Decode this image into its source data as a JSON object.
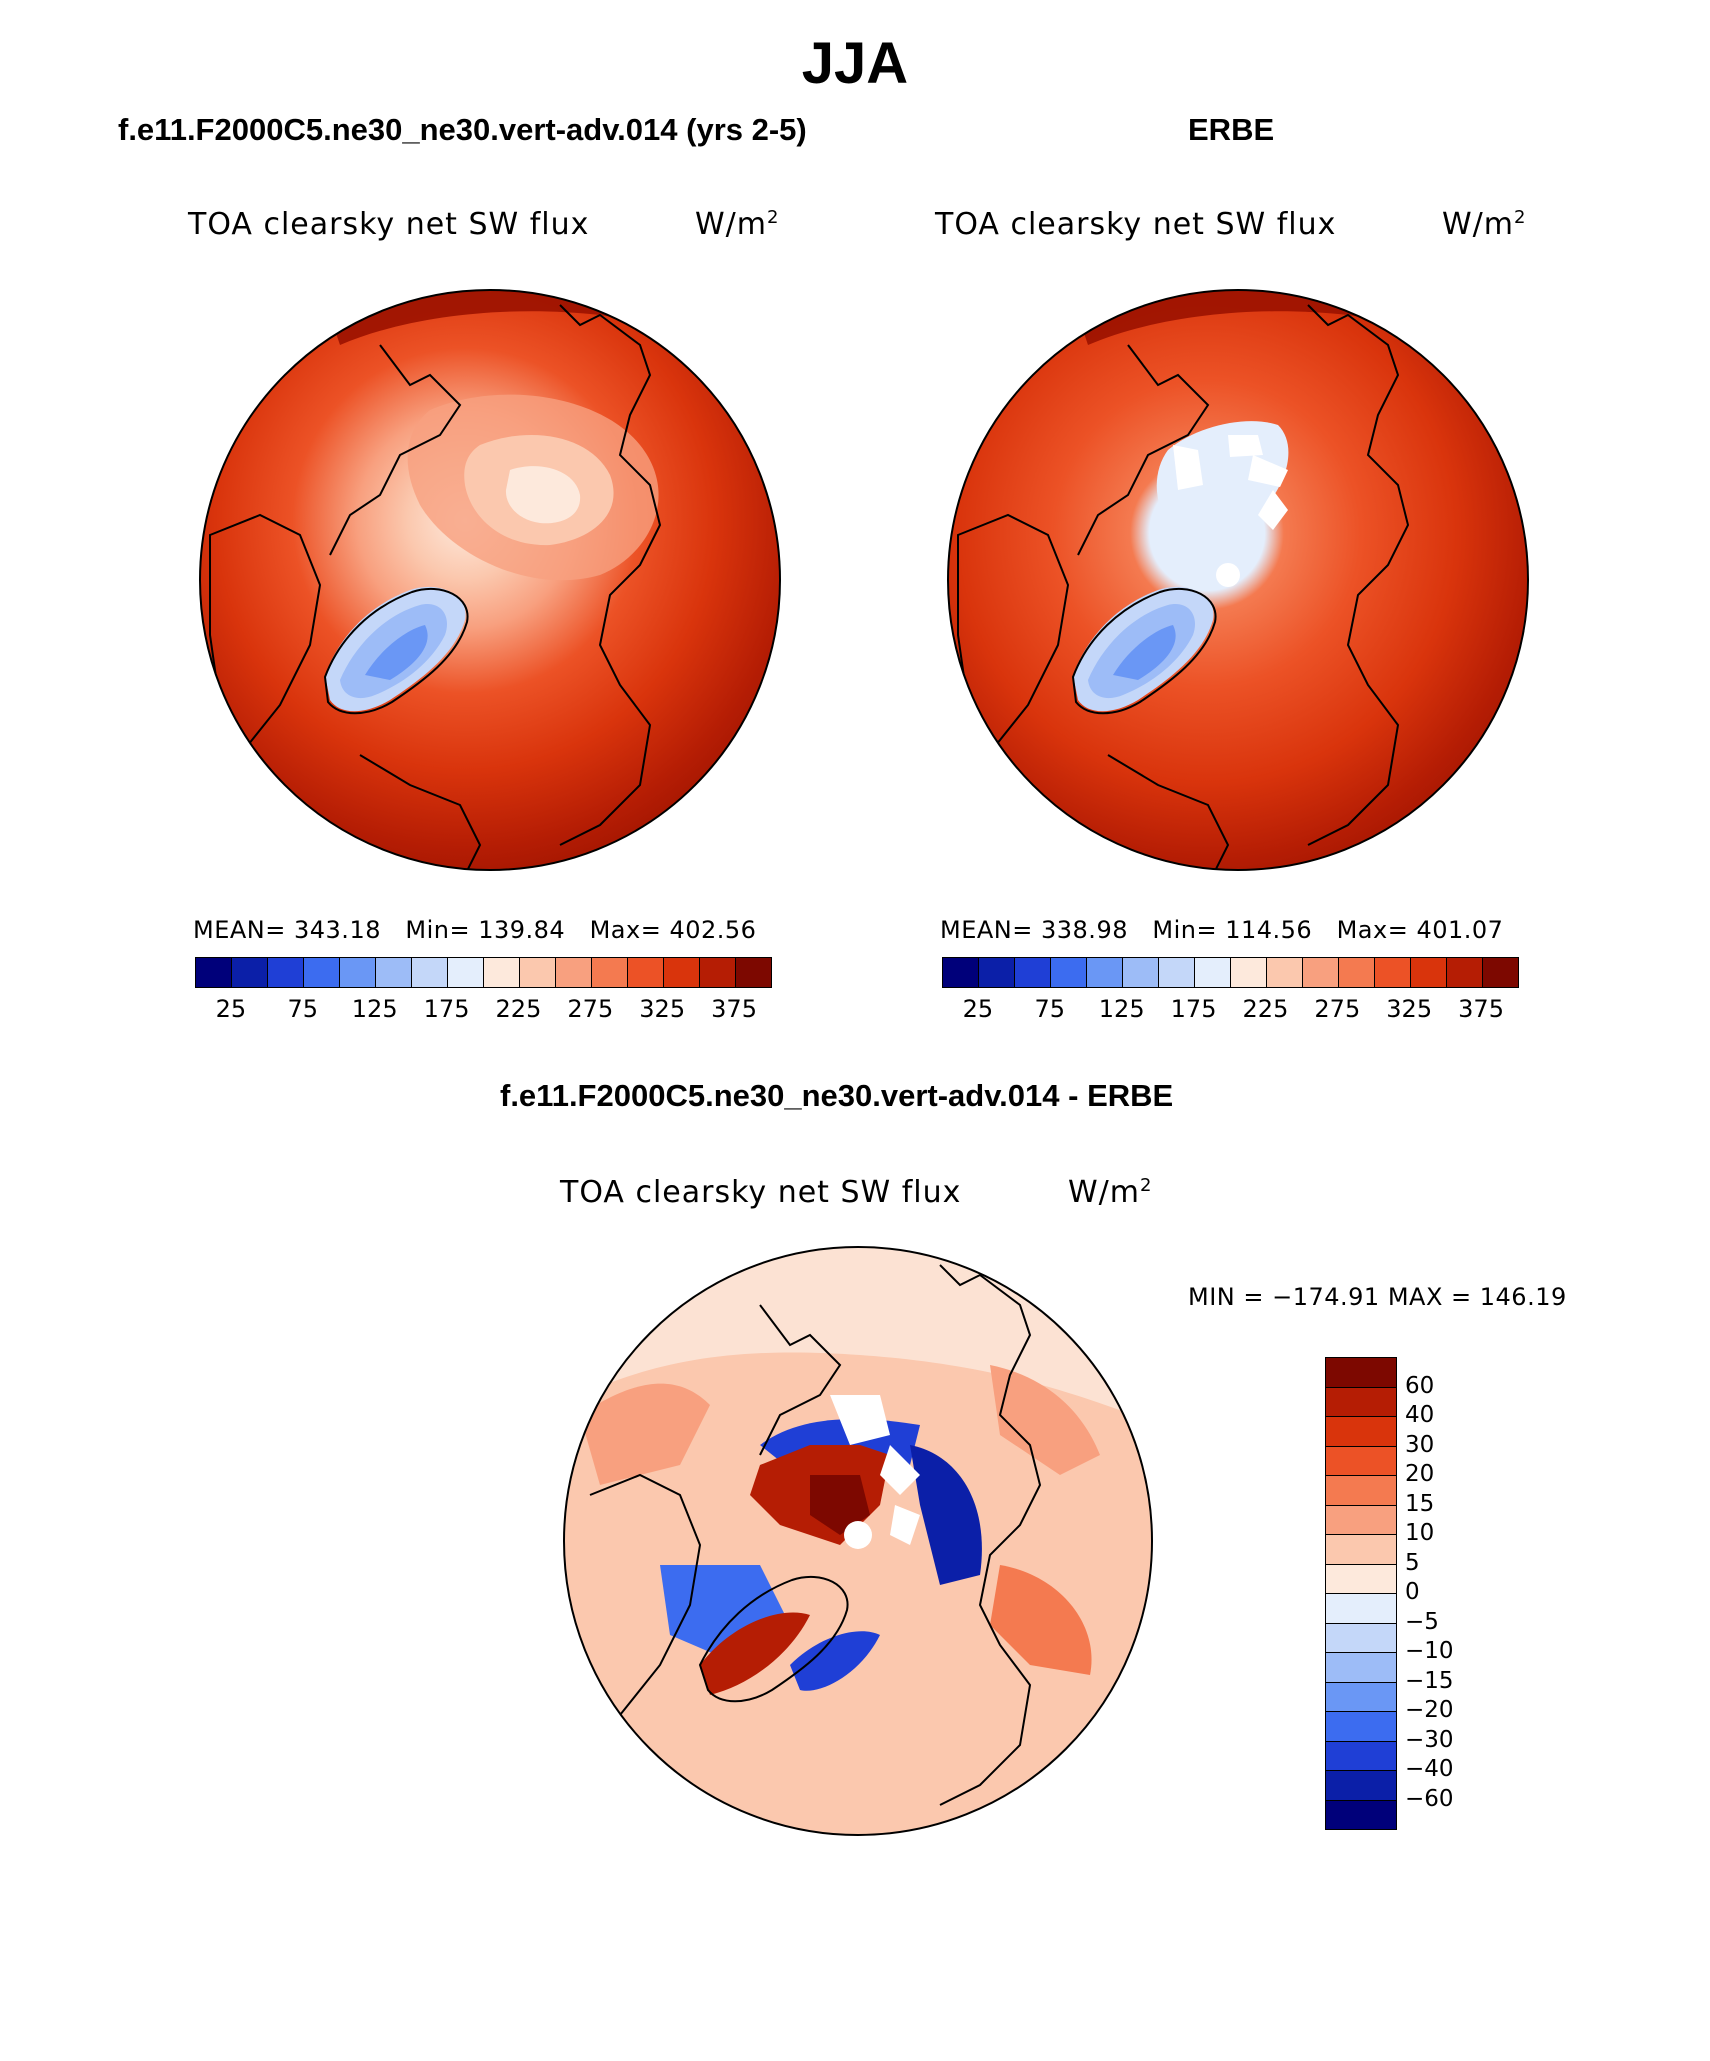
{
  "header": {
    "title": "JJA",
    "left_subtitle": "f.e11.F2000C5.ne30_ne30.vert-adv.014 (yrs 2-5)",
    "right_subtitle": "ERBE",
    "bottom_subtitle": "f.e11.F2000C5.ne30_ne30.vert-adv.014 - ERBE"
  },
  "panels": {
    "left": {
      "variable": "TOA clearsky net SW flux",
      "units": "W/m",
      "units_exp": "2",
      "mean_label": "MEAN=",
      "mean": "343.18",
      "min_label": "Min=",
      "min": "139.84",
      "max_label": "Max=",
      "max": "402.56"
    },
    "right": {
      "variable": "TOA clearsky net SW flux",
      "units": "W/m",
      "units_exp": "2",
      "mean_label": "MEAN=",
      "mean": "338.98",
      "min_label": "Min=",
      "min": "114.56",
      "max_label": "Max=",
      "max": "401.07"
    },
    "diff": {
      "variable": "TOA clearsky net SW flux",
      "units": "W/m",
      "units_exp": "2",
      "minmax": "MIN = −174.91 MAX = 146.19"
    }
  },
  "colorbar_abs": {
    "colors": [
      "#00007a",
      "#0b1fa8",
      "#1f3fd6",
      "#3c6cf0",
      "#6a97f5",
      "#9dbcf7",
      "#c4d7f9",
      "#e4eefc",
      "#fde9dc",
      "#fbc8ae",
      "#f8a07f",
      "#f47a50",
      "#ec5226",
      "#d9340c",
      "#b51d04",
      "#7d0800"
    ],
    "labels": [
      "25",
      "75",
      "125",
      "175",
      "225",
      "275",
      "325",
      "375"
    ]
  },
  "colorbar_diff": {
    "colors": [
      "#7d0800",
      "#b51d04",
      "#d9340c",
      "#ec5226",
      "#f47a50",
      "#f8a07f",
      "#fbc8ae",
      "#fde9dc",
      "#e4eefc",
      "#c4d7f9",
      "#9dbcf7",
      "#6a97f5",
      "#3c6cf0",
      "#1f3fd6",
      "#0b1fa8",
      "#00007a"
    ],
    "labels": [
      "60",
      "40",
      "30",
      "20",
      "15",
      "10",
      "5",
      "0",
      "−5",
      "−10",
      "−15",
      "−20",
      "−30",
      "−40",
      "−60"
    ]
  }
}
